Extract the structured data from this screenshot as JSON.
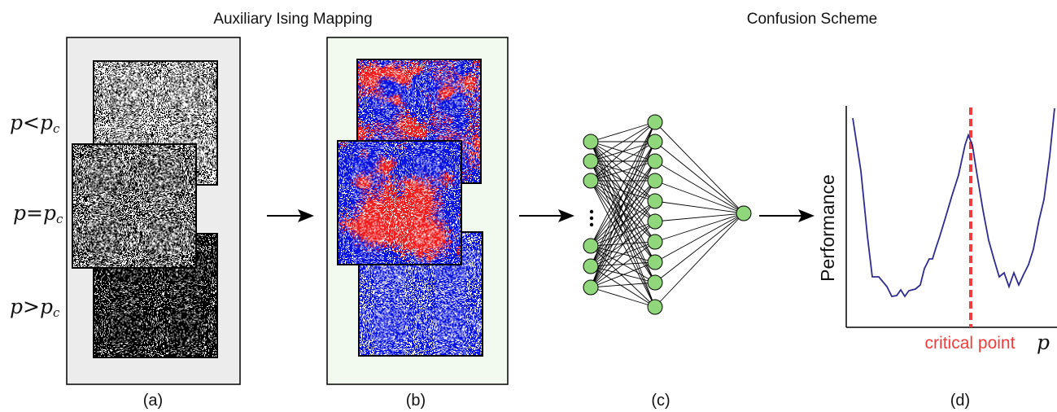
{
  "titles": {
    "left": "Auxiliary Ising Mapping",
    "right": "Confusion Scheme"
  },
  "panel_labels": [
    "(a)",
    "(b)",
    "(c)",
    "(d)"
  ],
  "row_labels": [
    {
      "p": "p",
      "rel": "<",
      "pc": "p",
      "sub": "c"
    },
    {
      "p": "p",
      "rel": "=",
      "pc": "p",
      "sub": "c"
    },
    {
      "p": "p",
      "rel": ">",
      "pc": "p",
      "sub": "c"
    }
  ],
  "plot": {
    "ylabel": "Performance",
    "critical_label": "critical point",
    "xlabel": "p"
  },
  "colors": {
    "panel_a_bg": "#ececec",
    "panel_b_bg": "#f2faf0",
    "node_fill": "#90d67a",
    "curve": "#2e2b8f",
    "critical_line": "#f03c3c",
    "ising_red": "#f02020",
    "ising_blue": "#0a14e0"
  }
}
